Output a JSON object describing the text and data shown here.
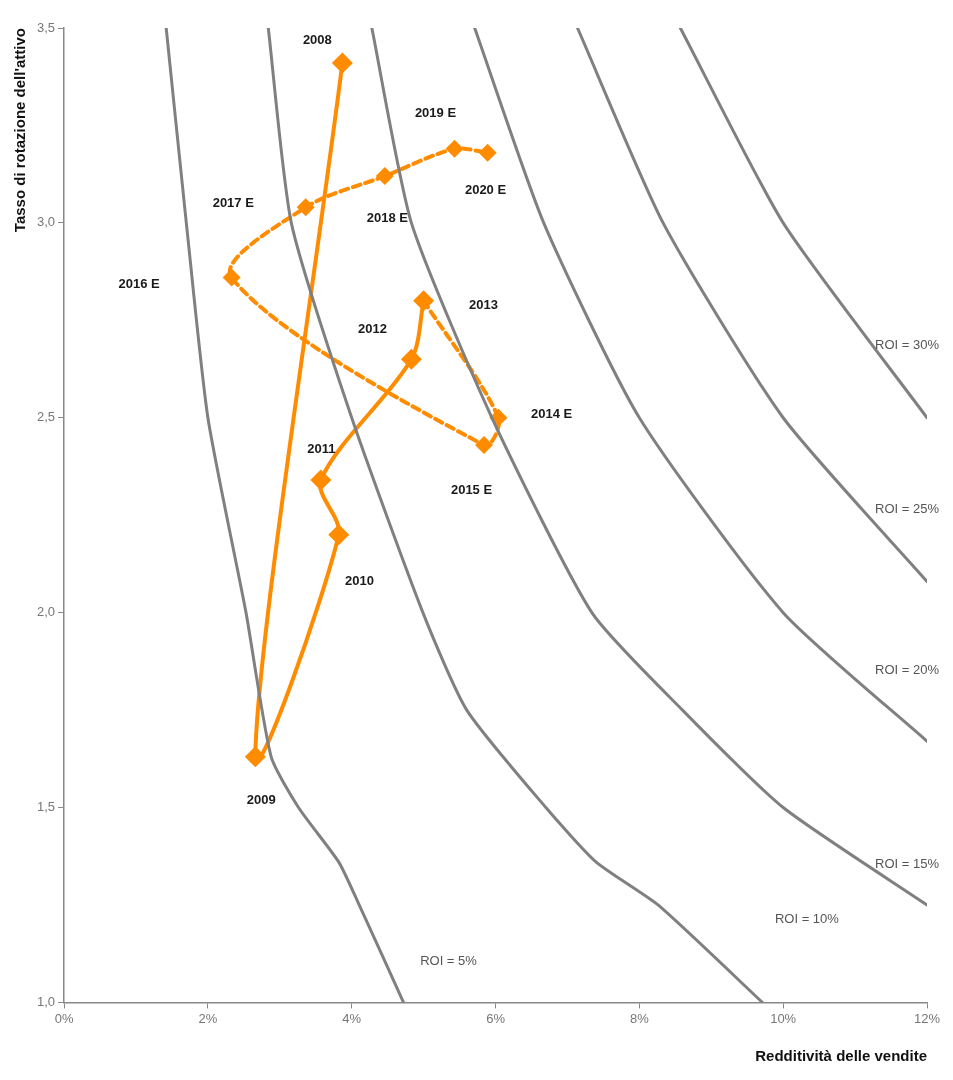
{
  "chart_data": {
    "type": "line",
    "xlabel": "Redditività delle vendite",
    "ylabel": "Tasso di rotazione dell'attivo",
    "xlim": [
      0,
      12
    ],
    "ylim": [
      1,
      3.5
    ],
    "xticks": [
      {
        "value": 0,
        "label": "0%"
      },
      {
        "value": 2,
        "label": "2%"
      },
      {
        "value": 4,
        "label": "4%"
      },
      {
        "value": 6,
        "label": "6%"
      },
      {
        "value": 8,
        "label": "8%"
      },
      {
        "value": 10,
        "label": "10%"
      },
      {
        "value": 12,
        "label": "12%"
      }
    ],
    "yticks": [
      {
        "value": 1,
        "label": "1,0"
      },
      {
        "value": 1.5,
        "label": "1,5"
      },
      {
        "value": 2,
        "label": "2,0"
      },
      {
        "value": 2.5,
        "label": "2,5"
      },
      {
        "value": 3,
        "label": "3,0"
      },
      {
        "value": 3.5,
        "label": "3,5"
      }
    ],
    "grid": false,
    "legend": false,
    "series": [
      {
        "type": "line",
        "color": "#808080",
        "marker": "none",
        "line_style": "solid",
        "x": [
          1.42,
          1.7,
          2.0,
          2.53,
          2.88,
          3.26,
          3.82,
          4.08,
          4.72
        ],
        "values": [
          3.5,
          3.0,
          2.5,
          2.0,
          1.63,
          1.5,
          1.36,
          1.26,
          1.0
        ]
      },
      {
        "type": "line",
        "color": "#808080",
        "marker": "none",
        "line_style": "solid",
        "x": [
          2.84,
          3.16,
          4.0,
          4.99,
          5.6,
          6.7,
          7.4,
          8.26,
          9.71
        ],
        "values": [
          3.5,
          3.0,
          2.5,
          2.0,
          1.75,
          1.5,
          1.36,
          1.25,
          1.0
        ]
      },
      {
        "type": "line",
        "color": "#808080",
        "marker": "none",
        "line_style": "solid",
        "x": [
          4.28,
          4.83,
          5.95,
          7.34,
          8.6,
          10.0,
          12
        ],
        "values": [
          3.5,
          3.0,
          2.5,
          2.0,
          1.75,
          1.5,
          1.25
        ]
      },
      {
        "type": "line",
        "color": "#808080",
        "marker": "none",
        "line_style": "solid",
        "x": [
          5.71,
          6.67,
          8.0,
          10,
          12
        ],
        "values": [
          3.5,
          3.0,
          2.5,
          2.0,
          1.67
        ]
      },
      {
        "type": "line",
        "color": "#808080",
        "marker": "none",
        "line_style": "solid",
        "x": [
          7.14,
          8.33,
          10,
          12
        ],
        "values": [
          3.5,
          3.0,
          2.5,
          2.08
        ]
      },
      {
        "type": "line",
        "color": "#808080",
        "marker": "none",
        "line_style": "solid",
        "x": [
          8.57,
          10,
          12
        ],
        "values": [
          3.5,
          3.0,
          2.5
        ]
      },
      {
        "type": "line",
        "color": "#ff8c00",
        "marker": "diamond",
        "line_style": "solid",
        "x": [
          3.87,
          2.66,
          3.82,
          3.57,
          4.83,
          5.0
        ],
        "values": [
          3.41,
          1.63,
          2.2,
          2.34,
          2.65,
          2.8
        ]
      },
      {
        "type": "line",
        "color": "#ff8c00",
        "marker": "diamond",
        "line_style": "dashed",
        "x": [
          5.0,
          6.04,
          5.84,
          2.33,
          3.36,
          4.46,
          5.43,
          5.89
        ],
        "values": [
          2.8,
          2.5,
          2.43,
          2.86,
          3.04,
          3.12,
          3.19,
          3.18
        ]
      }
    ],
    "annotations": [
      "2008",
      "2009",
      "2010",
      "2011",
      "2012",
      "2013",
      "2014 E",
      "2015 E",
      "2016 E",
      "2017 E",
      "2018 E",
      "2019 E",
      "2020 E",
      "ROI = 5%",
      "ROI = 10%",
      "ROI = 15%",
      "ROI = 20%",
      "ROI = 25%",
      "ROI = 30%"
    ]
  }
}
